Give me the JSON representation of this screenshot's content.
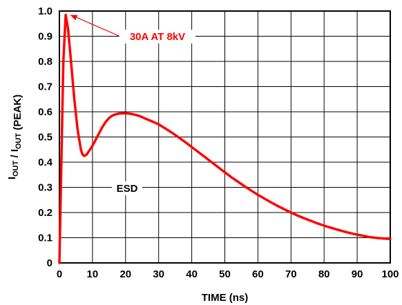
{
  "chart_data": {
    "type": "line",
    "title": "",
    "xlabel": "TIME (ns)",
    "ylabel": {
      "parts": [
        {
          "text": "I",
          "sub": "OUT"
        },
        {
          "text": " / I",
          "sub": "OUT"
        },
        {
          "text": " (PEAK)",
          "sub": ""
        }
      ]
    },
    "xlim": [
      0,
      100
    ],
    "ylim": [
      0,
      1.0
    ],
    "xticks": [
      0,
      10,
      20,
      30,
      40,
      50,
      60,
      70,
      80,
      90,
      100
    ],
    "yticks": [
      "0",
      "0.1",
      "0.2",
      "0.3",
      "0.4",
      "0.5",
      "0.6",
      "0.7",
      "0.8",
      "0.9",
      "1.0"
    ],
    "grid": true,
    "series": [
      {
        "name": "ESD",
        "color": "#ff0000",
        "x": [
          0,
          1.2,
          1.9,
          2.6,
          3.5,
          4.5,
          5.5,
          6.5,
          7.0,
          7.5,
          8.2,
          9,
          10,
          11,
          12,
          13,
          14,
          15,
          16,
          17,
          18,
          19,
          20,
          21,
          22,
          23,
          24,
          25,
          26,
          28,
          30,
          32,
          34,
          36,
          38,
          40,
          42,
          44,
          46,
          48,
          50,
          52,
          54,
          56,
          58,
          60,
          62,
          64,
          66,
          68,
          70,
          72,
          74,
          76,
          78,
          80,
          82,
          84,
          86,
          88,
          90,
          92,
          94,
          96,
          98,
          100
        ],
        "y": [
          0,
          0.8,
          0.985,
          0.93,
          0.8,
          0.65,
          0.53,
          0.45,
          0.43,
          0.425,
          0.43,
          0.445,
          0.465,
          0.49,
          0.515,
          0.54,
          0.56,
          0.575,
          0.585,
          0.59,
          0.593,
          0.594,
          0.594,
          0.593,
          0.591,
          0.588,
          0.584,
          0.579,
          0.573,
          0.562,
          0.55,
          0.534,
          0.517,
          0.499,
          0.48,
          0.46,
          0.44,
          0.42,
          0.4,
          0.38,
          0.36,
          0.34,
          0.322,
          0.304,
          0.287,
          0.27,
          0.255,
          0.24,
          0.226,
          0.213,
          0.2,
          0.188,
          0.177,
          0.167,
          0.157,
          0.148,
          0.14,
          0.132,
          0.125,
          0.118,
          0.112,
          0.107,
          0.102,
          0.099,
          0.097,
          0.095
        ]
      }
    ],
    "annotations": [
      {
        "text": "30A AT 8kV",
        "color": "#ff0000",
        "points_to": {
          "x": 2.0,
          "y": 0.99
        }
      },
      {
        "text": "ESD",
        "color": "#000000",
        "points_to": {
          "x": 25,
          "y": 0.3
        }
      }
    ]
  }
}
